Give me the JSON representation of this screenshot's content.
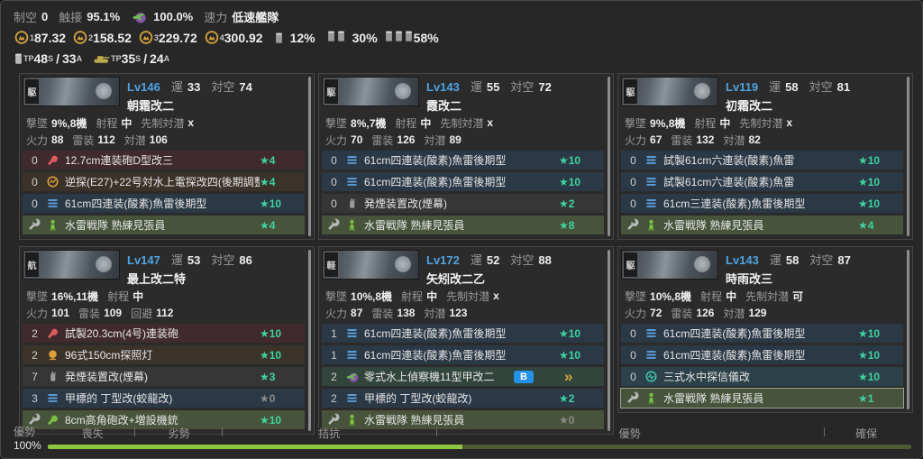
{
  "header": {
    "air_power": {
      "label": "制空",
      "value": "0"
    },
    "contact": {
      "label": "触接",
      "value": "95.1%"
    },
    "night_contact": {
      "value": "100.0%"
    },
    "speed": {
      "label": "速力",
      "value": "低速艦隊"
    },
    "fleet_gauges": [
      {
        "index": "1",
        "value": "87.32"
      },
      {
        "index": "2",
        "value": "158.52"
      },
      {
        "index": "3",
        "value": "229.72"
      },
      {
        "index": "4",
        "value": "300.92"
      }
    ],
    "drum_percents": [
      {
        "drums": 1,
        "value": "12%"
      },
      {
        "drums": 2,
        "value": "30%"
      },
      {
        "drums": 3,
        "value": "58%"
      }
    ],
    "tp": [
      {
        "icon": "drum",
        "label": "TP",
        "s": "48",
        "s_sub": "S",
        "sep": "/",
        "a": "33",
        "a_sub": "A"
      },
      {
        "icon": "tank",
        "label": "TP",
        "s": "35",
        "s_sub": "S",
        "sep": "/",
        "a": "24",
        "a_sub": "A"
      }
    ]
  },
  "ships": [
    {
      "type_badge": "駆",
      "level": "Lv146",
      "luck_label": "運",
      "luck": "33",
      "aa_label": "対空",
      "aa": "74",
      "name": "朝霜改二",
      "stats1": [
        {
          "label": "撃墜",
          "value": "9%,8機"
        },
        {
          "label": "射程",
          "value": "中"
        },
        {
          "label": "先制対潜",
          "value": "x"
        }
      ],
      "stats2": [
        {
          "label": "火力",
          "value": "88"
        },
        {
          "label": "雷装",
          "value": "112"
        },
        {
          "label": "対潜",
          "value": "106"
        }
      ],
      "equips": [
        {
          "count": "0",
          "icon": "main-gun-red",
          "name": "12.7cm連装砲D型改三",
          "stars": "★4",
          "star_class": "estar"
        },
        {
          "count": "0",
          "icon": "surface-radar",
          "name": "逆探(E27)+22号対水上電探改四(後期調整型)",
          "stars": "★4",
          "star_class": "estar"
        },
        {
          "count": "0",
          "icon": "torpedo",
          "name": "61cm四連装(酸素)魚雷後期型",
          "stars": "★10",
          "star_class": "estar"
        },
        {
          "icon": "lookout",
          "slot": "reinforcement",
          "name": "水雷戦隊 熟練見張員",
          "stars": "★4",
          "star_class": "estar"
        }
      ]
    },
    {
      "type_badge": "駆",
      "level": "Lv143",
      "luck_label": "運",
      "luck": "55",
      "aa_label": "対空",
      "aa": "72",
      "name": "霞改二",
      "stats1": [
        {
          "label": "撃墜",
          "value": "8%,7機"
        },
        {
          "label": "射程",
          "value": "中"
        },
        {
          "label": "先制対潜",
          "value": "x"
        }
      ],
      "stats2": [
        {
          "label": "火力",
          "value": "70"
        },
        {
          "label": "雷装",
          "value": "126"
        },
        {
          "label": "対潜",
          "value": "89"
        }
      ],
      "equips": [
        {
          "count": "0",
          "icon": "torpedo",
          "name": "61cm四連装(酸素)魚雷後期型",
          "stars": "★10",
          "star_class": "estar"
        },
        {
          "count": "0",
          "icon": "torpedo",
          "name": "61cm四連装(酸素)魚雷後期型",
          "stars": "★10",
          "star_class": "estar"
        },
        {
          "count": "0",
          "icon": "smoke-generator",
          "name": "発煙装置改(煙幕)",
          "stars": "★2",
          "star_class": "estar"
        },
        {
          "icon": "lookout",
          "slot": "reinforcement",
          "name": "水雷戦隊 熟練見張員",
          "stars": "★8",
          "star_class": "estar"
        }
      ]
    },
    {
      "type_badge": "駆",
      "level": "Lv119",
      "luck_label": "運",
      "luck": "58",
      "aa_label": "対空",
      "aa": "81",
      "name": "初霜改二",
      "stats1": [
        {
          "label": "撃墜",
          "value": "9%,8機"
        },
        {
          "label": "射程",
          "value": "中"
        },
        {
          "label": "先制対潜",
          "value": "x"
        }
      ],
      "stats2": [
        {
          "label": "火力",
          "value": "67"
        },
        {
          "label": "雷装",
          "value": "132"
        },
        {
          "label": "対潜",
          "value": "82"
        }
      ],
      "equips": [
        {
          "count": "0",
          "icon": "torpedo",
          "name": "試製61cm六連装(酸素)魚雷",
          "stars": "★10",
          "star_class": "estar"
        },
        {
          "count": "0",
          "icon": "torpedo",
          "name": "試製61cm六連装(酸素)魚雷",
          "stars": "★10",
          "star_class": "estar"
        },
        {
          "count": "0",
          "icon": "torpedo",
          "name": "61cm三連装(酸素)魚雷後期型",
          "stars": "★10",
          "star_class": "estar"
        },
        {
          "icon": "lookout",
          "slot": "reinforcement",
          "name": "水雷戦隊 熟練見張員",
          "stars": "★4",
          "star_class": "estar"
        }
      ]
    },
    {
      "type_badge": "航",
      "level": "Lv147",
      "luck_label": "運",
      "luck": "53",
      "aa_label": "対空",
      "aa": "86",
      "name": "最上改二特",
      "stats1": [
        {
          "label": "撃墜",
          "value": "16%,11機"
        },
        {
          "label": "射程",
          "value": "中"
        }
      ],
      "stats2": [
        {
          "label": "火力",
          "value": "101"
        },
        {
          "label": "雷装",
          "value": "109"
        },
        {
          "label": "回避",
          "value": "112"
        }
      ],
      "equips": [
        {
          "count": "2",
          "icon": "main-gun-red",
          "name": "試製20.3cm(4号)連装砲",
          "stars": "★10",
          "star_class": "estar"
        },
        {
          "count": "2",
          "icon": "searchlight",
          "name": "96式150cm探照灯",
          "stars": "★10",
          "star_class": "estar"
        },
        {
          "count": "7",
          "icon": "smoke-generator",
          "name": "発煙装置改(煙幕)",
          "stars": "★3",
          "star_class": "estar"
        },
        {
          "count": "3",
          "icon": "torpedo",
          "name": "甲標的 丁型改(蛟龍改)",
          "stars": "★0",
          "star_class": "estar dim"
        },
        {
          "icon": "aa-gun-green",
          "slot": "reinforcement",
          "name": "8cm高角砲改+増設機銃",
          "stars": "★10",
          "star_class": "estar"
        }
      ]
    },
    {
      "type_badge": "軽",
      "level": "Lv172",
      "luck_label": "運",
      "luck": "52",
      "aa_label": "対空",
      "aa": "88",
      "name": "矢矧改二乙",
      "stats1": [
        {
          "label": "撃墜",
          "value": "10%,8機"
        },
        {
          "label": "射程",
          "value": "中"
        },
        {
          "label": "先制対潜",
          "value": "x"
        }
      ],
      "stats2": [
        {
          "label": "火力",
          "value": "87"
        },
        {
          "label": "雷装",
          "value": "138"
        },
        {
          "label": "対潜",
          "value": "123"
        }
      ],
      "equips": [
        {
          "count": "1",
          "icon": "torpedo",
          "name": "61cm四連装(酸素)魚雷後期型",
          "stars": "★10",
          "star_class": "estar"
        },
        {
          "count": "1",
          "icon": "torpedo",
          "name": "61cm四連装(酸素)魚雷後期型",
          "stars": "★10",
          "star_class": "estar"
        },
        {
          "count": "2",
          "icon": "night-recon-seaplane",
          "name": "零式水上偵察機11型甲改二",
          "rank_badge": "B",
          "improvement_chevron": "»"
        },
        {
          "count": "2",
          "icon": "torpedo",
          "name": "甲標的 丁型改(蛟龍改)",
          "stars": "★2",
          "star_class": "estar"
        },
        {
          "icon": "lookout",
          "slot": "reinforcement",
          "name": "水雷戦隊 熟練見張員",
          "stars": "★0",
          "star_class": "estar dim"
        }
      ]
    },
    {
      "type_badge": "駆",
      "level": "Lv143",
      "luck_label": "運",
      "luck": "58",
      "aa_label": "対空",
      "aa": "87",
      "name": "時雨改三",
      "stats1": [
        {
          "label": "撃墜",
          "value": "10%,8機"
        },
        {
          "label": "射程",
          "value": "中"
        },
        {
          "label": "先制対潜",
          "value": "可"
        }
      ],
      "stats2": [
        {
          "label": "火力",
          "value": "72"
        },
        {
          "label": "雷装",
          "value": "126"
        },
        {
          "label": "対潜",
          "value": "129"
        }
      ],
      "equips": [
        {
          "count": "0",
          "icon": "torpedo",
          "name": "61cm四連装(酸素)魚雷後期型",
          "stars": "★10",
          "star_class": "estar"
        },
        {
          "count": "0",
          "icon": "torpedo",
          "name": "61cm四連装(酸素)魚雷後期型",
          "stars": "★10",
          "star_class": "estar"
        },
        {
          "count": "0",
          "icon": "sonar",
          "name": "三式水中探信儀改",
          "stars": "★10",
          "star_class": "estar"
        },
        {
          "icon": "lookout",
          "slot": "reinforcement",
          "name": "水雷戦隊 熟練見張員",
          "stars": "★1",
          "star_class": "estar"
        }
      ]
    }
  ],
  "air_state_gauge": {
    "current_state": "優勢",
    "current_percent": "100%",
    "markers": [
      "喪失",
      "劣勢",
      "拮抗",
      "優勢",
      "確保"
    ],
    "bar_fill_percent": 48
  },
  "colors": {
    "star_active": "#3ed3a0",
    "star_inactive": "#8a8a8a",
    "level_blue": "#4fa3e3",
    "bar_bright_green": "#8dc63f",
    "bar_olive": "#4e5a34",
    "rank_badge_blue": "#2492e8",
    "chevron_gold": "#d8a43c",
    "row_red": "#402a2d",
    "row_blue": "#2b3845",
    "row_green": "#47533b"
  }
}
